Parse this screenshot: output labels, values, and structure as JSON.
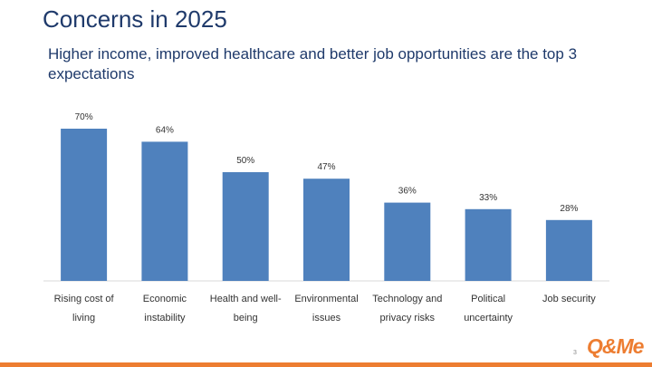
{
  "header": {
    "title": "Concerns in 2025",
    "subtitle": "Higher income, improved healthcare and better job opportunities are the top 3 expectations"
  },
  "chart_data": {
    "type": "bar",
    "title": "",
    "xlabel": "",
    "ylabel": "",
    "ylim": [
      0,
      85
    ],
    "grid": false,
    "categories": [
      [
        "Rising cost of",
        "living"
      ],
      [
        "Economic",
        "instability"
      ],
      [
        "Health and well-",
        "being"
      ],
      [
        "Environmental",
        "issues"
      ],
      [
        "Technology and",
        "privacy risks"
      ],
      [
        "Political",
        "uncertainty"
      ],
      [
        "Job security"
      ]
    ],
    "values": [
      70,
      64,
      50,
      47,
      36,
      33,
      28
    ],
    "value_labels": [
      "70%",
      "64%",
      "50%",
      "47%",
      "36%",
      "33%",
      "28%"
    ],
    "bar_color": "#4f81bd"
  },
  "footer": {
    "page_number": "3",
    "logo_text": "Q&Me",
    "accent_color": "#ed7d31"
  }
}
